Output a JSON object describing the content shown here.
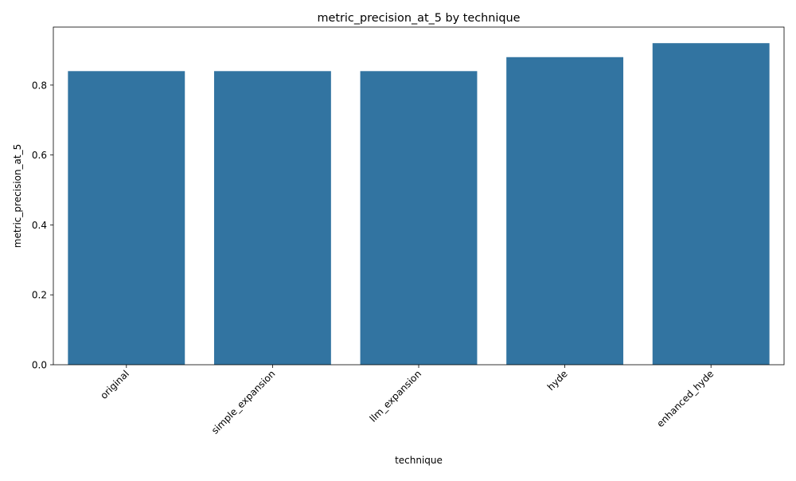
{
  "chart_data": {
    "type": "bar",
    "title": "metric_precision_at_5 by technique",
    "xlabel": "technique",
    "ylabel": "metric_precision_at_5",
    "categories": [
      "original",
      "simple_expansion",
      "llm_expansion",
      "hyde",
      "enhanced_hyde"
    ],
    "values": [
      0.84,
      0.84,
      0.84,
      0.88,
      0.92
    ],
    "ylim": [
      0,
      0.966
    ],
    "yticks": [
      "0.0",
      "0.2",
      "0.4",
      "0.6",
      "0.8"
    ],
    "grid": false,
    "legend": false,
    "bar_color": "#3274a1"
  }
}
